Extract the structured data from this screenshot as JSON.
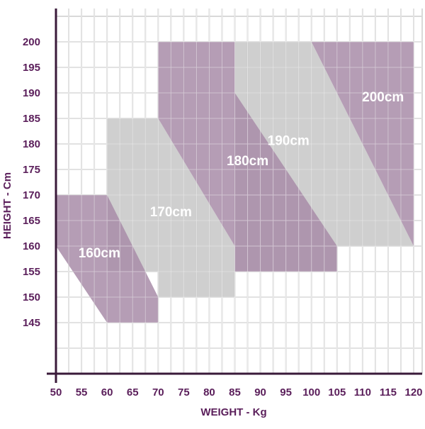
{
  "chart_data": {
    "type": "area",
    "title": "",
    "xlabel": "WEIGHT - Kg",
    "ylabel": "HEIGHT - Cm",
    "xlim": [
      50,
      120
    ],
    "ylim": [
      135,
      200
    ],
    "x_ticks": [
      50,
      55,
      60,
      65,
      70,
      75,
      80,
      85,
      90,
      95,
      100,
      105,
      110,
      115,
      120
    ],
    "y_ticks": [
      145,
      150,
      155,
      160,
      165,
      170,
      175,
      180,
      185,
      190,
      195,
      200
    ],
    "grid": true,
    "colors": {
      "purple": "#a88ca8",
      "gray": "#c7c7c7",
      "axis": "#3a1a3a",
      "tick_text": "#5a1e5a",
      "grid": "#d9d9d9",
      "label_text": "#ffffff"
    },
    "regions": [
      {
        "name": "170cm",
        "color": "gray",
        "polygon": [
          [
            60,
            185
          ],
          [
            70,
            185
          ],
          [
            85,
            160
          ],
          [
            85,
            150
          ],
          [
            70,
            150
          ],
          [
            70,
            155
          ],
          [
            60,
            155
          ]
        ],
        "label_at": [
          72.5,
          166.5
        ]
      },
      {
        "name": "190cm",
        "color": "gray",
        "polygon": [
          [
            85,
            200
          ],
          [
            100,
            200
          ],
          [
            120,
            160
          ],
          [
            105,
            160
          ],
          [
            105,
            155
          ],
          [
            85,
            155
          ]
        ],
        "label_at": [
          95.5,
          180.5
        ]
      },
      {
        "name": "160cm",
        "color": "purple",
        "polygon": [
          [
            50,
            170
          ],
          [
            60,
            170
          ],
          [
            70,
            150
          ],
          [
            70,
            145
          ],
          [
            60,
            145
          ],
          [
            50,
            160
          ]
        ],
        "label_at": [
          58.5,
          158.5
        ]
      },
      {
        "name": "180cm",
        "color": "purple",
        "polygon": [
          [
            70,
            200
          ],
          [
            85,
            200
          ],
          [
            85,
            190
          ],
          [
            105,
            160
          ],
          [
            105,
            155
          ],
          [
            85,
            155
          ],
          [
            85,
            160
          ],
          [
            70,
            185
          ]
        ],
        "label_at": [
          87.5,
          176.5
        ]
      },
      {
        "name": "200cm",
        "color": "purple",
        "polygon": [
          [
            100,
            200
          ],
          [
            120,
            200
          ],
          [
            120,
            160
          ]
        ],
        "label_at": [
          114,
          189
        ]
      }
    ]
  }
}
